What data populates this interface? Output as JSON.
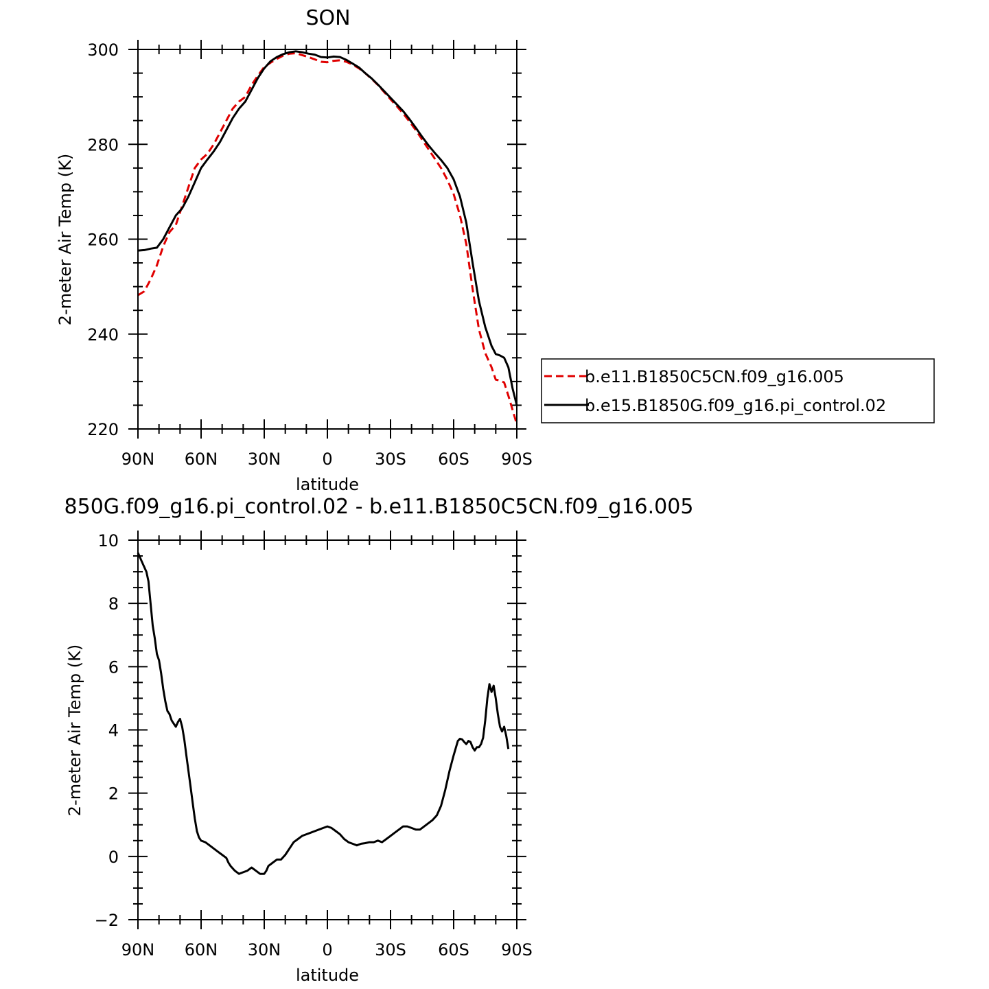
{
  "chart_data": [
    {
      "type": "line",
      "title": "SON",
      "xlabel": "latitude",
      "ylabel": "2-meter Air Temp (K)",
      "xlim": [
        90,
        -90
      ],
      "ylim": [
        220,
        300
      ],
      "x_ticks": [
        90,
        60,
        30,
        0,
        -30,
        -60,
        -90
      ],
      "x_tick_labels": [
        "90N",
        "60N",
        "30N",
        "0",
        "30S",
        "60S",
        "90S"
      ],
      "y_ticks": [
        220,
        240,
        260,
        280,
        300
      ],
      "y_tick_labels": [
        "220",
        "240",
        "260",
        "280",
        "300"
      ],
      "legend_position": "right",
      "series": [
        {
          "name": "b.e11.B1850C5CN.f09_g16.005",
          "color": "#e00000",
          "dash": "dashed",
          "points": [
            [
              90,
              248.2
            ],
            [
              87,
              249
            ],
            [
              84,
              251.5
            ],
            [
              81,
              254.5
            ],
            [
              78,
              258.5
            ],
            [
              75,
              261.5
            ],
            [
              72,
              263
            ],
            [
              69,
              267
            ],
            [
              66,
              271
            ],
            [
              63,
              275
            ],
            [
              60,
              276.8
            ],
            [
              57,
              278
            ],
            [
              54,
              280
            ],
            [
              51,
              282.5
            ],
            [
              48,
              285
            ],
            [
              45,
              287.5
            ],
            [
              42,
              289
            ],
            [
              39,
              290
            ],
            [
              36,
              292.5
            ],
            [
              33,
              294.5
            ],
            [
              30,
              296.3
            ],
            [
              27,
              297.2
            ],
            [
              24,
              298
            ],
            [
              21,
              298.7
            ],
            [
              18,
              299.1
            ],
            [
              15,
              299.2
            ],
            [
              12,
              298.8
            ],
            [
              9,
              298.4
            ],
            [
              6,
              297.9
            ],
            [
              3,
              297.4
            ],
            [
              0,
              297.3
            ],
            [
              -3,
              297.6
            ],
            [
              -6,
              297.7
            ],
            [
              -9,
              297.4
            ],
            [
              -12,
              296.8
            ],
            [
              -15,
              296
            ],
            [
              -18,
              295
            ],
            [
              -21,
              293.8
            ],
            [
              -24,
              292.5
            ],
            [
              -27,
              291
            ],
            [
              -30,
              289.5
            ],
            [
              -33,
              288
            ],
            [
              -36,
              286.5
            ],
            [
              -39,
              284.8
            ],
            [
              -42,
              283
            ],
            [
              -45,
              281
            ],
            [
              -48,
              279
            ],
            [
              -51,
              277
            ],
            [
              -54,
              275
            ],
            [
              -57,
              272.5
            ],
            [
              -60,
              269.5
            ],
            [
              -63,
              265
            ],
            [
              -66,
              259
            ],
            [
              -69,
              249.5
            ],
            [
              -72,
              241
            ],
            [
              -75,
              236
            ],
            [
              -78,
              233
            ],
            [
              -80,
              230.4
            ],
            [
              -82,
              230.2
            ],
            [
              -84,
              229.8
            ],
            [
              -86,
              227
            ],
            [
              -88,
              224
            ],
            [
              -90,
              221
            ]
          ]
        },
        {
          "name": "b.e15.B1850G.f09_g16.pi_control.02",
          "color": "#000000",
          "dash": "solid",
          "points": [
            [
              90,
              257.6
            ],
            [
              87,
              257.7
            ],
            [
              84,
              258
            ],
            [
              81,
              258.2
            ],
            [
              78,
              260
            ],
            [
              75,
              262.5
            ],
            [
              72,
              265
            ],
            [
              69,
              266.5
            ],
            [
              66,
              269
            ],
            [
              63,
              272
            ],
            [
              60,
              275
            ],
            [
              57,
              276.8
            ],
            [
              54,
              278.5
            ],
            [
              51,
              280.5
            ],
            [
              48,
              283
            ],
            [
              45,
              285.5
            ],
            [
              42,
              287.5
            ],
            [
              39,
              289
            ],
            [
              36,
              291.5
            ],
            [
              33,
              294
            ],
            [
              30,
              296
            ],
            [
              27,
              297.5
            ],
            [
              24,
              298.4
            ],
            [
              21,
              299
            ],
            [
              18,
              299.4
            ],
            [
              15,
              299.6
            ],
            [
              12,
              299.4
            ],
            [
              9,
              299.1
            ],
            [
              6,
              298.9
            ],
            [
              3,
              298.4
            ],
            [
              0,
              298.3
            ],
            [
              -3,
              298.5
            ],
            [
              -6,
              298.4
            ],
            [
              -9,
              297.8
            ],
            [
              -12,
              297
            ],
            [
              -15,
              296.2
            ],
            [
              -18,
              295
            ],
            [
              -21,
              293.9
            ],
            [
              -24,
              292.6
            ],
            [
              -27,
              291.2
            ],
            [
              -30,
              289.8
            ],
            [
              -33,
              288.4
            ],
            [
              -36,
              287
            ],
            [
              -39,
              285.3
            ],
            [
              -42,
              283.5
            ],
            [
              -45,
              281.6
            ],
            [
              -48,
              279.8
            ],
            [
              -51,
              278.2
            ],
            [
              -54,
              276.7
            ],
            [
              -57,
              275
            ],
            [
              -60,
              272.6
            ],
            [
              -63,
              269
            ],
            [
              -66,
              263.5
            ],
            [
              -69,
              255
            ],
            [
              -72,
              247
            ],
            [
              -75,
              241.5
            ],
            [
              -78,
              237.5
            ],
            [
              -80,
              235.8
            ],
            [
              -82,
              235.5
            ],
            [
              -84,
              235
            ],
            [
              -86,
              233
            ],
            [
              -88,
              228.5
            ],
            [
              -90,
              225
            ]
          ]
        }
      ]
    },
    {
      "type": "line",
      "title": "850G.f09_g16.pi_control.02 - b.e11.B1850C5CN.f09_g16.005",
      "xlabel": "latitude",
      "ylabel": "2-meter Air Temp (K)",
      "xlim": [
        90,
        -90
      ],
      "ylim": [
        -2,
        10
      ],
      "x_ticks": [
        90,
        60,
        30,
        0,
        -30,
        -60,
        -90
      ],
      "x_tick_labels": [
        "90N",
        "60N",
        "30N",
        "0",
        "30S",
        "60S",
        "90S"
      ],
      "y_ticks": [
        -2,
        0,
        2,
        4,
        6,
        8,
        10
      ],
      "y_tick_labels": [
        "−2",
        "0",
        "2",
        "4",
        "6",
        "8",
        "10"
      ],
      "series": [
        {
          "color": "#000000",
          "dash": "solid",
          "points": [
            [
              90,
              9.6
            ],
            [
              88,
              9.3
            ],
            [
              86,
              9.0
            ],
            [
              85,
              8.7
            ],
            [
              84,
              8.0
            ],
            [
              83,
              7.3
            ],
            [
              82,
              6.9
            ],
            [
              81,
              6.4
            ],
            [
              80,
              6.2
            ],
            [
              79,
              5.8
            ],
            [
              78,
              5.3
            ],
            [
              77,
              4.9
            ],
            [
              76,
              4.6
            ],
            [
              75,
              4.5
            ],
            [
              74,
              4.3
            ],
            [
              73,
              4.2
            ],
            [
              72,
              4.1
            ],
            [
              71,
              4.25
            ],
            [
              70,
              4.35
            ],
            [
              69,
              4.1
            ],
            [
              68,
              3.7
            ],
            [
              67,
              3.2
            ],
            [
              66,
              2.7
            ],
            [
              65,
              2.2
            ],
            [
              64,
              1.7
            ],
            [
              63,
              1.2
            ],
            [
              62,
              0.8
            ],
            [
              61,
              0.6
            ],
            [
              60,
              0.5
            ],
            [
              58,
              0.45
            ],
            [
              56,
              0.35
            ],
            [
              54,
              0.25
            ],
            [
              52,
              0.15
            ],
            [
              50,
              0.05
            ],
            [
              48,
              -0.05
            ],
            [
              47,
              -0.2
            ],
            [
              46,
              -0.3
            ],
            [
              44,
              -0.45
            ],
            [
              42,
              -0.55
            ],
            [
              40,
              -0.5
            ],
            [
              38,
              -0.45
            ],
            [
              36,
              -0.35
            ],
            [
              34,
              -0.45
            ],
            [
              32,
              -0.55
            ],
            [
              30,
              -0.55
            ],
            [
              29,
              -0.45
            ],
            [
              28,
              -0.3
            ],
            [
              26,
              -0.2
            ],
            [
              24,
              -0.1
            ],
            [
              22,
              -0.1
            ],
            [
              20,
              0.05
            ],
            [
              18,
              0.25
            ],
            [
              16,
              0.45
            ],
            [
              14,
              0.55
            ],
            [
              12,
              0.65
            ],
            [
              10,
              0.7
            ],
            [
              8,
              0.75
            ],
            [
              6,
              0.8
            ],
            [
              4,
              0.85
            ],
            [
              2,
              0.9
            ],
            [
              0,
              0.95
            ],
            [
              -2,
              0.9
            ],
            [
              -4,
              0.8
            ],
            [
              -6,
              0.7
            ],
            [
              -8,
              0.55
            ],
            [
              -10,
              0.45
            ],
            [
              -12,
              0.4
            ],
            [
              -14,
              0.35
            ],
            [
              -16,
              0.4
            ],
            [
              -18,
              0.42
            ],
            [
              -20,
              0.45
            ],
            [
              -22,
              0.45
            ],
            [
              -24,
              0.5
            ],
            [
              -26,
              0.45
            ],
            [
              -28,
              0.55
            ],
            [
              -30,
              0.65
            ],
            [
              -32,
              0.75
            ],
            [
              -34,
              0.85
            ],
            [
              -36,
              0.95
            ],
            [
              -38,
              0.95
            ],
            [
              -40,
              0.9
            ],
            [
              -42,
              0.85
            ],
            [
              -44,
              0.85
            ],
            [
              -46,
              0.95
            ],
            [
              -48,
              1.05
            ],
            [
              -50,
              1.15
            ],
            [
              -52,
              1.3
            ],
            [
              -54,
              1.6
            ],
            [
              -56,
              2.1
            ],
            [
              -58,
              2.7
            ],
            [
              -60,
              3.2
            ],
            [
              -62,
              3.65
            ],
            [
              -63,
              3.72
            ],
            [
              -64,
              3.7
            ],
            [
              -65,
              3.62
            ],
            [
              -66,
              3.55
            ],
            [
              -67,
              3.65
            ],
            [
              -68,
              3.62
            ],
            [
              -69,
              3.45
            ],
            [
              -70,
              3.35
            ],
            [
              -71,
              3.45
            ],
            [
              -72,
              3.45
            ],
            [
              -73,
              3.55
            ],
            [
              -74,
              3.75
            ],
            [
              -75,
              4.3
            ],
            [
              -76,
              5.0
            ],
            [
              -77,
              5.45
            ],
            [
              -78,
              5.2
            ],
            [
              -79,
              5.4
            ],
            [
              -80,
              5.0
            ],
            [
              -81,
              4.5
            ],
            [
              -82,
              4.1
            ],
            [
              -83,
              3.95
            ],
            [
              -84,
              4.1
            ],
            [
              -85,
              3.8
            ],
            [
              -86,
              3.4
            ]
          ]
        }
      ]
    }
  ]
}
